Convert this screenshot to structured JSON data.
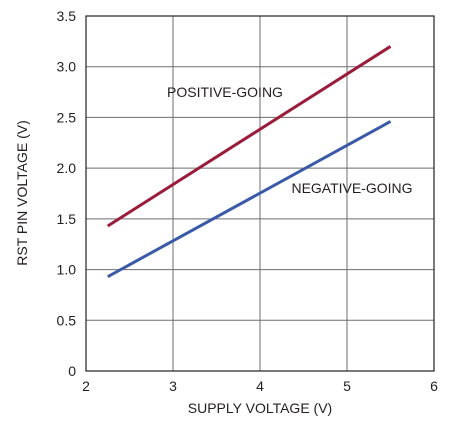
{
  "chart_data": {
    "type": "line",
    "title": "",
    "xlabel": "SUPPLY VOLTAGE (V)",
    "ylabel": "RST PIN VOLTAGE (V)",
    "xlim": [
      2,
      6
    ],
    "ylim": [
      0,
      3.5
    ],
    "x_ticks": [
      "2",
      "3",
      "4",
      "5",
      "6"
    ],
    "y_ticks": [
      "0",
      "0.5",
      "1.0",
      "1.5",
      "2.0",
      "2.5",
      "3.0",
      "3.5"
    ],
    "grid": true,
    "series": [
      {
        "name": "POSITIVE-GOING",
        "color": "#9b1b3a",
        "x": [
          2.25,
          5.5
        ],
        "y": [
          1.43,
          3.2
        ]
      },
      {
        "name": "NEGATIVE-GOING",
        "color": "#3a5aa8",
        "x": [
          2.25,
          5.5
        ],
        "y": [
          0.93,
          2.46
        ]
      }
    ]
  }
}
